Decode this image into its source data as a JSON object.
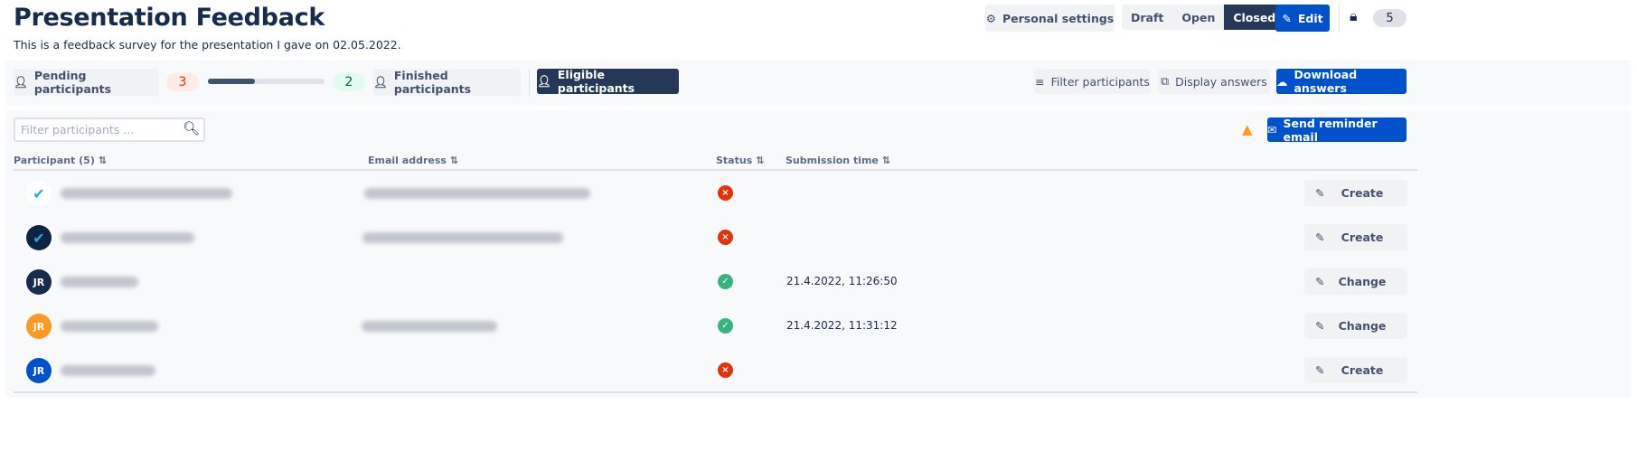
{
  "header": {
    "title": "Presentation Feedback",
    "description": "This is a feedback survey for the presentation I gave on 02.05.2022.",
    "personal_settings": "Personal settings",
    "states": [
      "Draft",
      "Open",
      "Closed"
    ],
    "active_state": "Closed",
    "edit": "Edit",
    "count": "5"
  },
  "toolbar": {
    "pending": "Pending participants",
    "pending_count": "3",
    "finished_count": "2",
    "progress_fraction": 0.4,
    "finished": "Finished participants",
    "eligible": "Eligible participants",
    "filter": "Filter participants",
    "display": "Display answers",
    "download": "Download answers"
  },
  "table": {
    "search_placeholder": "Filter participants ...",
    "send_reminder": "Send reminder email",
    "columns": [
      "Participant (5)",
      "Email address",
      "Status",
      "Submission time"
    ],
    "rows": [
      {
        "avatar": "logo-light",
        "status": "pending",
        "time": "",
        "action": "Create"
      },
      {
        "avatar": "logo-dark",
        "status": "pending",
        "time": "",
        "action": "Create"
      },
      {
        "avatar": "JR",
        "avatar_color": "#172b4d",
        "status": "finished",
        "time": "21.4.2022, 11:26:50",
        "action": "Change"
      },
      {
        "avatar": "JR",
        "avatar_color": "#ff991f",
        "status": "finished",
        "time": "21.4.2022, 11:31:12",
        "action": "Change"
      },
      {
        "avatar": "JR",
        "avatar_color": "#0052cc",
        "status": "pending",
        "time": "",
        "action": "Create"
      }
    ]
  },
  "colors": {
    "primary": "#0052cc",
    "dark": "#253858",
    "error": "#de350b",
    "success": "#36b37e",
    "warning": "#ff991f"
  }
}
